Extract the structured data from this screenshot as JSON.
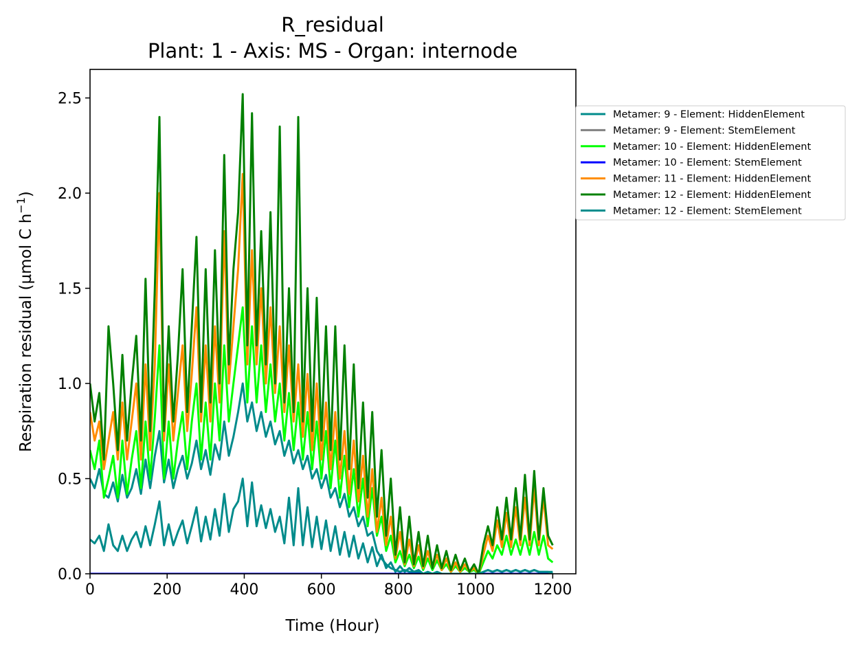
{
  "chart_data": {
    "type": "line",
    "title": "R_residual",
    "subtitle": "Plant: 1 - Axis: MS - Organ: internode",
    "xlabel": "Time (Hour)",
    "ylabel": "Respiration residual (µmol C h",
    "ylabel_sup": "−1",
    "ylabel_end": ")",
    "xlim": [
      0,
      1260
    ],
    "ylim": [
      0,
      2.65
    ],
    "xticks": [
      0,
      200,
      400,
      600,
      800,
      1000,
      1200
    ],
    "xtick_labels": [
      "0",
      "200",
      "400",
      "600",
      "800",
      "1000",
      "1200"
    ],
    "yticks": [
      0,
      0.5,
      1.0,
      1.5,
      2.0,
      2.5
    ],
    "ytick_labels": [
      "0.0",
      "0.5",
      "1.0",
      "1.5",
      "2.0",
      "2.5"
    ],
    "grid": false,
    "legend_position": "outside-right",
    "series": [
      {
        "name": "Metamer: 9 - Element: HiddenElement",
        "color": "#008b8b",
        "x": [
          0,
          12,
          24,
          36,
          48,
          60,
          72,
          84,
          96,
          108,
          120,
          132,
          144,
          156,
          168,
          180,
          192,
          204,
          216,
          228,
          240,
          252,
          264,
          276,
          288,
          300,
          312,
          324,
          336,
          348,
          360,
          372,
          384,
          396,
          408,
          420,
          432,
          444,
          456,
          468,
          480,
          492,
          504,
          516,
          528,
          540,
          552,
          564,
          576,
          588,
          600,
          612,
          624,
          636,
          648,
          660,
          672,
          684,
          696,
          708,
          720,
          732,
          744,
          756,
          768,
          780,
          792,
          804,
          816,
          828,
          840,
          852,
          864,
          876,
          888,
          900,
          912,
          924,
          936,
          948,
          960,
          972,
          984,
          996,
          1008,
          1020,
          1032,
          1044,
          1056,
          1068,
          1080,
          1092,
          1104,
          1116,
          1128,
          1140,
          1152,
          1164,
          1176,
          1188,
          1200
        ],
        "y": [
          0.5,
          0.45,
          0.55,
          0.42,
          0.4,
          0.48,
          0.38,
          0.52,
          0.4,
          0.45,
          0.55,
          0.42,
          0.6,
          0.45,
          0.62,
          0.75,
          0.48,
          0.6,
          0.45,
          0.55,
          0.62,
          0.5,
          0.58,
          0.7,
          0.55,
          0.65,
          0.52,
          0.68,
          0.6,
          0.8,
          0.62,
          0.72,
          0.85,
          1.0,
          0.8,
          0.9,
          0.75,
          0.85,
          0.72,
          0.8,
          0.68,
          0.75,
          0.62,
          0.7,
          0.58,
          0.65,
          0.55,
          0.62,
          0.5,
          0.55,
          0.45,
          0.52,
          0.4,
          0.45,
          0.35,
          0.42,
          0.3,
          0.35,
          0.25,
          0.3,
          0.2,
          0.22,
          0.12,
          0.08,
          0.05,
          0.03,
          0.02,
          0.01,
          0.02,
          0.01,
          0.01,
          0.01,
          0.0,
          0.01,
          0.0,
          0.01,
          0.0,
          0.0,
          0.0,
          0.0,
          0.0,
          0.0,
          0.0,
          0.0,
          0.0,
          0.01,
          0.02,
          0.01,
          0.02,
          0.01,
          0.02,
          0.01,
          0.02,
          0.01,
          0.02,
          0.01,
          0.02,
          0.01,
          0.01,
          0.01,
          0.01
        ]
      },
      {
        "name": "Metamer: 9 - Element: StemElement",
        "color": "#808080",
        "x": [
          0,
          1200
        ],
        "y": [
          0.0,
          0.0
        ]
      },
      {
        "name": "Metamer: 10 - Element: HiddenElement",
        "color": "#00ff00",
        "x": [
          0,
          12,
          24,
          36,
          48,
          60,
          72,
          84,
          96,
          108,
          120,
          132,
          144,
          156,
          168,
          180,
          192,
          204,
          216,
          228,
          240,
          252,
          264,
          276,
          288,
          300,
          312,
          324,
          336,
          348,
          360,
          372,
          384,
          396,
          408,
          420,
          432,
          444,
          456,
          468,
          480,
          492,
          504,
          516,
          528,
          540,
          552,
          564,
          576,
          588,
          600,
          612,
          624,
          636,
          648,
          660,
          672,
          684,
          696,
          708,
          720,
          732,
          744,
          756,
          768,
          780,
          792,
          804,
          816,
          828,
          840,
          852,
          864,
          876,
          888,
          900,
          912,
          924,
          936,
          948,
          960,
          972,
          984,
          996,
          1008,
          1020,
          1032,
          1044,
          1056,
          1068,
          1080,
          1092,
          1104,
          1116,
          1128,
          1140,
          1152,
          1164,
          1176,
          1188,
          1200
        ],
        "y": [
          0.65,
          0.55,
          0.7,
          0.4,
          0.5,
          0.62,
          0.4,
          0.7,
          0.42,
          0.6,
          0.75,
          0.45,
          0.8,
          0.5,
          0.82,
          1.2,
          0.5,
          0.8,
          0.5,
          0.7,
          0.85,
          0.55,
          0.8,
          1.0,
          0.6,
          0.9,
          0.6,
          1.0,
          0.7,
          1.2,
          0.8,
          1.0,
          1.2,
          1.4,
          0.9,
          1.3,
          0.9,
          1.2,
          0.85,
          1.1,
          0.8,
          1.0,
          0.7,
          0.95,
          0.65,
          0.9,
          0.6,
          0.85,
          0.55,
          0.8,
          0.5,
          0.75,
          0.45,
          0.7,
          0.4,
          0.62,
          0.35,
          0.55,
          0.3,
          0.5,
          0.25,
          0.45,
          0.2,
          0.3,
          0.12,
          0.2,
          0.06,
          0.12,
          0.04,
          0.1,
          0.03,
          0.09,
          0.02,
          0.08,
          0.02,
          0.07,
          0.02,
          0.05,
          0.01,
          0.04,
          0.01,
          0.03,
          0.01,
          0.02,
          0.0,
          0.06,
          0.12,
          0.08,
          0.15,
          0.1,
          0.2,
          0.1,
          0.18,
          0.1,
          0.2,
          0.1,
          0.22,
          0.1,
          0.2,
          0.08,
          0.06
        ]
      },
      {
        "name": "Metamer: 10 - Element: StemElement",
        "color": "#0000ff",
        "x": [
          0,
          1200
        ],
        "y": [
          0.0,
          0.0
        ]
      },
      {
        "name": "Metamer: 11 - Element: HiddenElement",
        "color": "#ff8c00",
        "x": [
          0,
          12,
          24,
          36,
          48,
          60,
          72,
          84,
          96,
          108,
          120,
          132,
          144,
          156,
          168,
          180,
          192,
          204,
          216,
          228,
          240,
          252,
          264,
          276,
          288,
          300,
          312,
          324,
          336,
          348,
          360,
          372,
          384,
          396,
          408,
          420,
          432,
          444,
          456,
          468,
          480,
          492,
          504,
          516,
          528,
          540,
          552,
          564,
          576,
          588,
          600,
          612,
          624,
          636,
          648,
          660,
          672,
          684,
          696,
          708,
          720,
          732,
          744,
          756,
          768,
          780,
          792,
          804,
          816,
          828,
          840,
          852,
          864,
          876,
          888,
          900,
          912,
          924,
          936,
          948,
          960,
          972,
          984,
          996,
          1008,
          1020,
          1032,
          1044,
          1056,
          1068,
          1080,
          1092,
          1104,
          1116,
          1128,
          1140,
          1152,
          1164,
          1176,
          1188,
          1200
        ],
        "y": [
          0.85,
          0.7,
          0.8,
          0.55,
          0.7,
          0.85,
          0.6,
          0.9,
          0.6,
          0.8,
          1.0,
          0.6,
          1.1,
          0.65,
          1.1,
          2.0,
          0.7,
          1.1,
          0.7,
          0.95,
          1.2,
          0.75,
          1.05,
          1.4,
          0.8,
          1.2,
          0.8,
          1.3,
          0.9,
          1.8,
          1.0,
          1.3,
          1.6,
          2.1,
          1.1,
          1.7,
          1.1,
          1.5,
          1.0,
          1.4,
          0.95,
          1.3,
          0.85,
          1.2,
          0.8,
          1.1,
          0.72,
          1.05,
          0.65,
          1.0,
          0.6,
          0.9,
          0.55,
          0.85,
          0.5,
          0.75,
          0.42,
          0.7,
          0.38,
          0.62,
          0.3,
          0.55,
          0.22,
          0.4,
          0.15,
          0.3,
          0.08,
          0.22,
          0.05,
          0.18,
          0.04,
          0.15,
          0.03,
          0.12,
          0.03,
          0.1,
          0.02,
          0.08,
          0.01,
          0.06,
          0.01,
          0.05,
          0.01,
          0.03,
          0.0,
          0.1,
          0.2,
          0.12,
          0.28,
          0.14,
          0.32,
          0.14,
          0.35,
          0.15,
          0.4,
          0.15,
          0.45,
          0.15,
          0.4,
          0.15,
          0.13
        ]
      },
      {
        "name": "Metamer: 12 - Element: HiddenElement",
        "color": "#008000",
        "x": [
          0,
          12,
          24,
          36,
          48,
          60,
          72,
          84,
          96,
          108,
          120,
          132,
          144,
          156,
          168,
          180,
          192,
          204,
          216,
          228,
          240,
          252,
          264,
          276,
          288,
          300,
          312,
          324,
          336,
          348,
          360,
          372,
          384,
          396,
          408,
          420,
          432,
          444,
          456,
          468,
          480,
          492,
          504,
          516,
          528,
          540,
          552,
          564,
          576,
          588,
          600,
          612,
          624,
          636,
          648,
          660,
          672,
          684,
          696,
          708,
          720,
          732,
          744,
          756,
          768,
          780,
          792,
          804,
          816,
          828,
          840,
          852,
          864,
          876,
          888,
          900,
          912,
          924,
          936,
          948,
          960,
          972,
          984,
          996,
          1008,
          1020,
          1032,
          1044,
          1056,
          1068,
          1080,
          1092,
          1104,
          1116,
          1128,
          1140,
          1152,
          1164,
          1176,
          1188,
          1200
        ],
        "y": [
          1.0,
          0.8,
          0.95,
          0.6,
          1.3,
          1.0,
          0.65,
          1.15,
          0.7,
          1.0,
          1.25,
          0.7,
          1.55,
          0.75,
          1.5,
          2.4,
          0.75,
          1.3,
          0.8,
          1.15,
          1.6,
          0.85,
          1.3,
          1.77,
          0.85,
          1.6,
          0.9,
          1.7,
          1.0,
          2.2,
          1.1,
          1.6,
          1.9,
          2.52,
          1.2,
          2.42,
          1.2,
          1.8,
          1.1,
          1.9,
          1.0,
          2.35,
          0.9,
          1.5,
          0.85,
          2.4,
          0.8,
          1.5,
          0.75,
          1.45,
          0.7,
          1.3,
          0.65,
          1.3,
          0.6,
          1.2,
          0.55,
          1.1,
          0.45,
          0.9,
          0.4,
          0.85,
          0.3,
          0.65,
          0.2,
          0.5,
          0.1,
          0.35,
          0.06,
          0.3,
          0.05,
          0.22,
          0.04,
          0.2,
          0.03,
          0.15,
          0.03,
          0.12,
          0.02,
          0.1,
          0.02,
          0.08,
          0.01,
          0.05,
          0.0,
          0.15,
          0.25,
          0.15,
          0.35,
          0.18,
          0.4,
          0.18,
          0.45,
          0.18,
          0.52,
          0.18,
          0.54,
          0.18,
          0.45,
          0.2,
          0.15
        ]
      },
      {
        "name": "Metamer: 12 - Element: StemElement",
        "color": "#008b8b",
        "x": [
          0,
          12,
          24,
          36,
          48,
          60,
          72,
          84,
          96,
          108,
          120,
          132,
          144,
          156,
          168,
          180,
          192,
          204,
          216,
          228,
          240,
          252,
          264,
          276,
          288,
          300,
          312,
          324,
          336,
          348,
          360,
          372,
          384,
          396,
          408,
          420,
          432,
          444,
          456,
          468,
          480,
          492,
          504,
          516,
          528,
          540,
          552,
          564,
          576,
          588,
          600,
          612,
          624,
          636,
          648,
          660,
          672,
          684,
          696,
          708,
          720,
          732,
          744,
          756,
          768,
          780,
          792,
          804,
          816,
          828,
          840,
          852,
          864,
          876,
          888,
          900,
          912,
          924,
          936,
          948,
          960,
          972,
          984,
          996,
          1008,
          1020,
          1032,
          1044,
          1056,
          1068,
          1080,
          1092,
          1104,
          1116,
          1128,
          1140,
          1152,
          1164,
          1176,
          1188,
          1200
        ],
        "y": [
          0.18,
          0.16,
          0.2,
          0.12,
          0.26,
          0.15,
          0.12,
          0.2,
          0.12,
          0.18,
          0.22,
          0.14,
          0.25,
          0.15,
          0.26,
          0.38,
          0.15,
          0.26,
          0.15,
          0.22,
          0.28,
          0.16,
          0.25,
          0.35,
          0.17,
          0.3,
          0.18,
          0.34,
          0.2,
          0.42,
          0.22,
          0.34,
          0.38,
          0.5,
          0.25,
          0.48,
          0.25,
          0.36,
          0.24,
          0.34,
          0.22,
          0.3,
          0.16,
          0.4,
          0.15,
          0.45,
          0.15,
          0.35,
          0.14,
          0.3,
          0.13,
          0.28,
          0.12,
          0.25,
          0.1,
          0.22,
          0.09,
          0.2,
          0.08,
          0.16,
          0.06,
          0.14,
          0.04,
          0.1,
          0.03,
          0.06,
          0.01,
          0.04,
          0.01,
          0.03,
          0.01,
          0.02,
          0.0,
          0.01,
          0.0,
          0.01,
          0.0,
          0.0,
          0.0,
          0.0,
          0.0,
          0.0,
          0.0,
          0.0,
          0.0,
          0.01,
          0.02,
          0.01,
          0.02,
          0.01,
          0.02,
          0.01,
          0.02,
          0.01,
          0.02,
          0.01,
          0.02,
          0.01,
          0.01,
          0.01,
          0.0
        ]
      }
    ]
  }
}
